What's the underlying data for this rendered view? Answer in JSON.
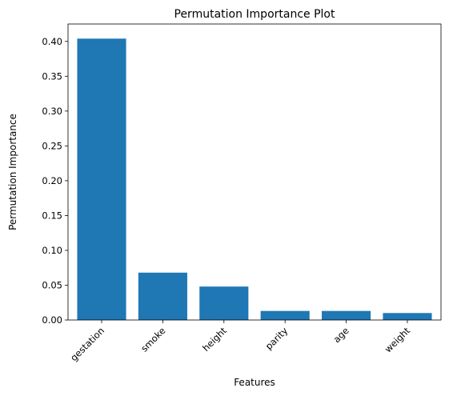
{
  "chart_data": {
    "type": "bar",
    "title": "Permutation Importance Plot",
    "xlabel": "Features",
    "ylabel": "Permutation Importance",
    "categories": [
      "gestation",
      "smoke",
      "height",
      "parity",
      "age",
      "weight"
    ],
    "values": [
      0.404,
      0.068,
      0.048,
      0.013,
      0.013,
      0.01
    ],
    "ylim": [
      0,
      0.425
    ],
    "yticks": [
      0.0,
      0.05,
      0.1,
      0.15,
      0.2,
      0.25,
      0.3,
      0.35,
      0.4
    ],
    "ytick_labels": [
      "0.00",
      "0.05",
      "0.10",
      "0.15",
      "0.20",
      "0.25",
      "0.30",
      "0.35",
      "0.40"
    ],
    "bar_color": "#1f77b4",
    "grid": false,
    "legend": "none"
  }
}
